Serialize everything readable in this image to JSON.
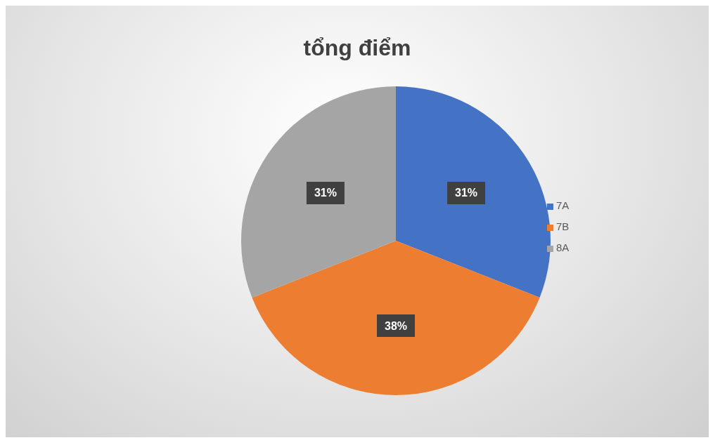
{
  "chart_data": {
    "type": "pie",
    "title": "tổng điểm",
    "categories": [
      "7A",
      "7B",
      "8A"
    ],
    "values": [
      31,
      38,
      31
    ],
    "colors": [
      "#4472c4",
      "#ed7d31",
      "#a5a5a5"
    ],
    "value_labels": [
      "31%",
      "38%",
      "31%"
    ],
    "data_labels": true,
    "legend": "right"
  }
}
